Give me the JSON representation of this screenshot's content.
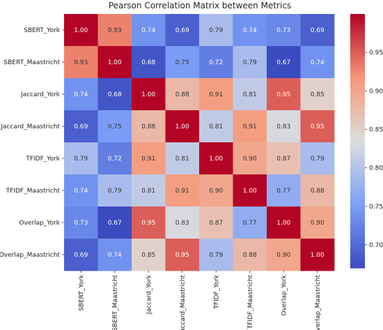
{
  "chart_data": {
    "type": "heatmap",
    "title": "Pearson Correlation Matrix between Metrics",
    "rows": [
      "SBERT_York",
      "SBERT_Maastricht",
      "Jaccard_York",
      "Jaccard_Maastricht",
      "TFIDF_York",
      "TFIDF_Maastricht",
      "Overlap_York",
      "Overlap_Maastricht"
    ],
    "columns": [
      "SBERT_York",
      "SBERT_Maastricht",
      "Jaccard_York",
      "Jaccard_Maastricht",
      "TFIDF_York",
      "TFIDF_Maastricht",
      "Overlap_York",
      "Overlap_Maastricht"
    ],
    "values": [
      [
        1.0,
        0.93,
        0.74,
        0.69,
        0.79,
        0.74,
        0.73,
        0.69
      ],
      [
        0.93,
        1.0,
        0.68,
        0.75,
        0.72,
        0.79,
        0.67,
        0.74
      ],
      [
        0.74,
        0.68,
        1.0,
        0.88,
        0.91,
        0.81,
        0.95,
        0.85
      ],
      [
        0.69,
        0.75,
        0.88,
        1.0,
        0.81,
        0.91,
        0.83,
        0.95
      ],
      [
        0.79,
        0.72,
        0.91,
        0.81,
        1.0,
        0.9,
        0.87,
        0.79
      ],
      [
        0.74,
        0.79,
        0.81,
        0.91,
        0.9,
        1.0,
        0.77,
        0.88
      ],
      [
        0.73,
        0.67,
        0.95,
        0.83,
        0.87,
        0.77,
        1.0,
        0.9
      ],
      [
        0.69,
        0.74,
        0.85,
        0.95,
        0.79,
        0.88,
        0.9,
        1.0
      ]
    ],
    "value_format": "0.00",
    "colormap": "coolwarm",
    "vmin": 0.67,
    "vmax": 1.0,
    "colorbar_ticks": [
      "0.70",
      "0.75",
      "0.80",
      "0.85",
      "0.90",
      "0.95"
    ],
    "annotations": true,
    "grid": false
  }
}
